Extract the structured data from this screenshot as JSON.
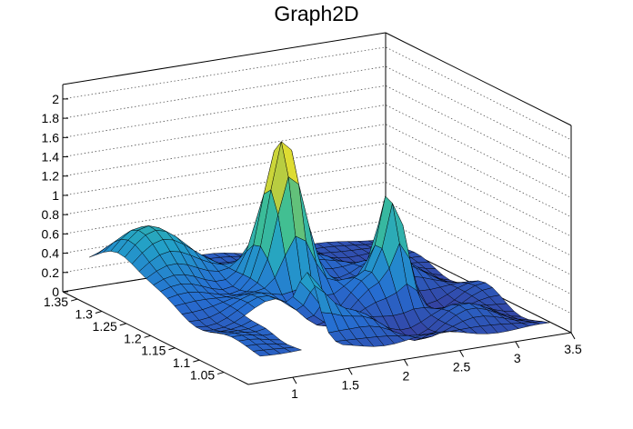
{
  "chart_data": {
    "type": "surface",
    "title": "Graph2D",
    "xlabel": "",
    "ylabel": "",
    "zlabel": "",
    "xlim": [
      0.6,
      3.5
    ],
    "ylim": [
      1.0,
      1.38
    ],
    "zlim": [
      0,
      2.15
    ],
    "xticks": [
      "1",
      "1.5",
      "2",
      "2.5",
      "3",
      "3.5"
    ],
    "yticks": [
      "1.05",
      "1.1",
      "1.15",
      "1.2",
      "1.25",
      "1.3",
      "1.35"
    ],
    "zticks": [
      "0",
      "0.2",
      "0.4",
      "0.6",
      "0.8",
      "1",
      "1.2",
      "1.4",
      "1.6",
      "1.8",
      "2"
    ],
    "grid": true,
    "colormap": "viridis-like (blue to green to yellow)",
    "peaks": [
      {
        "x": 1.8,
        "y": 1.2,
        "z": 1.55
      },
      {
        "x": 2.55,
        "y": 1.15,
        "z": 1.3
      },
      {
        "x": 1.45,
        "y": 1.08,
        "z": 0.95
      },
      {
        "x": 1.0,
        "y": 1.3,
        "z": 0.85
      }
    ],
    "hole": {
      "x": [
        1.12,
        1.5
      ],
      "y": [
        1.0,
        1.13
      ]
    }
  }
}
